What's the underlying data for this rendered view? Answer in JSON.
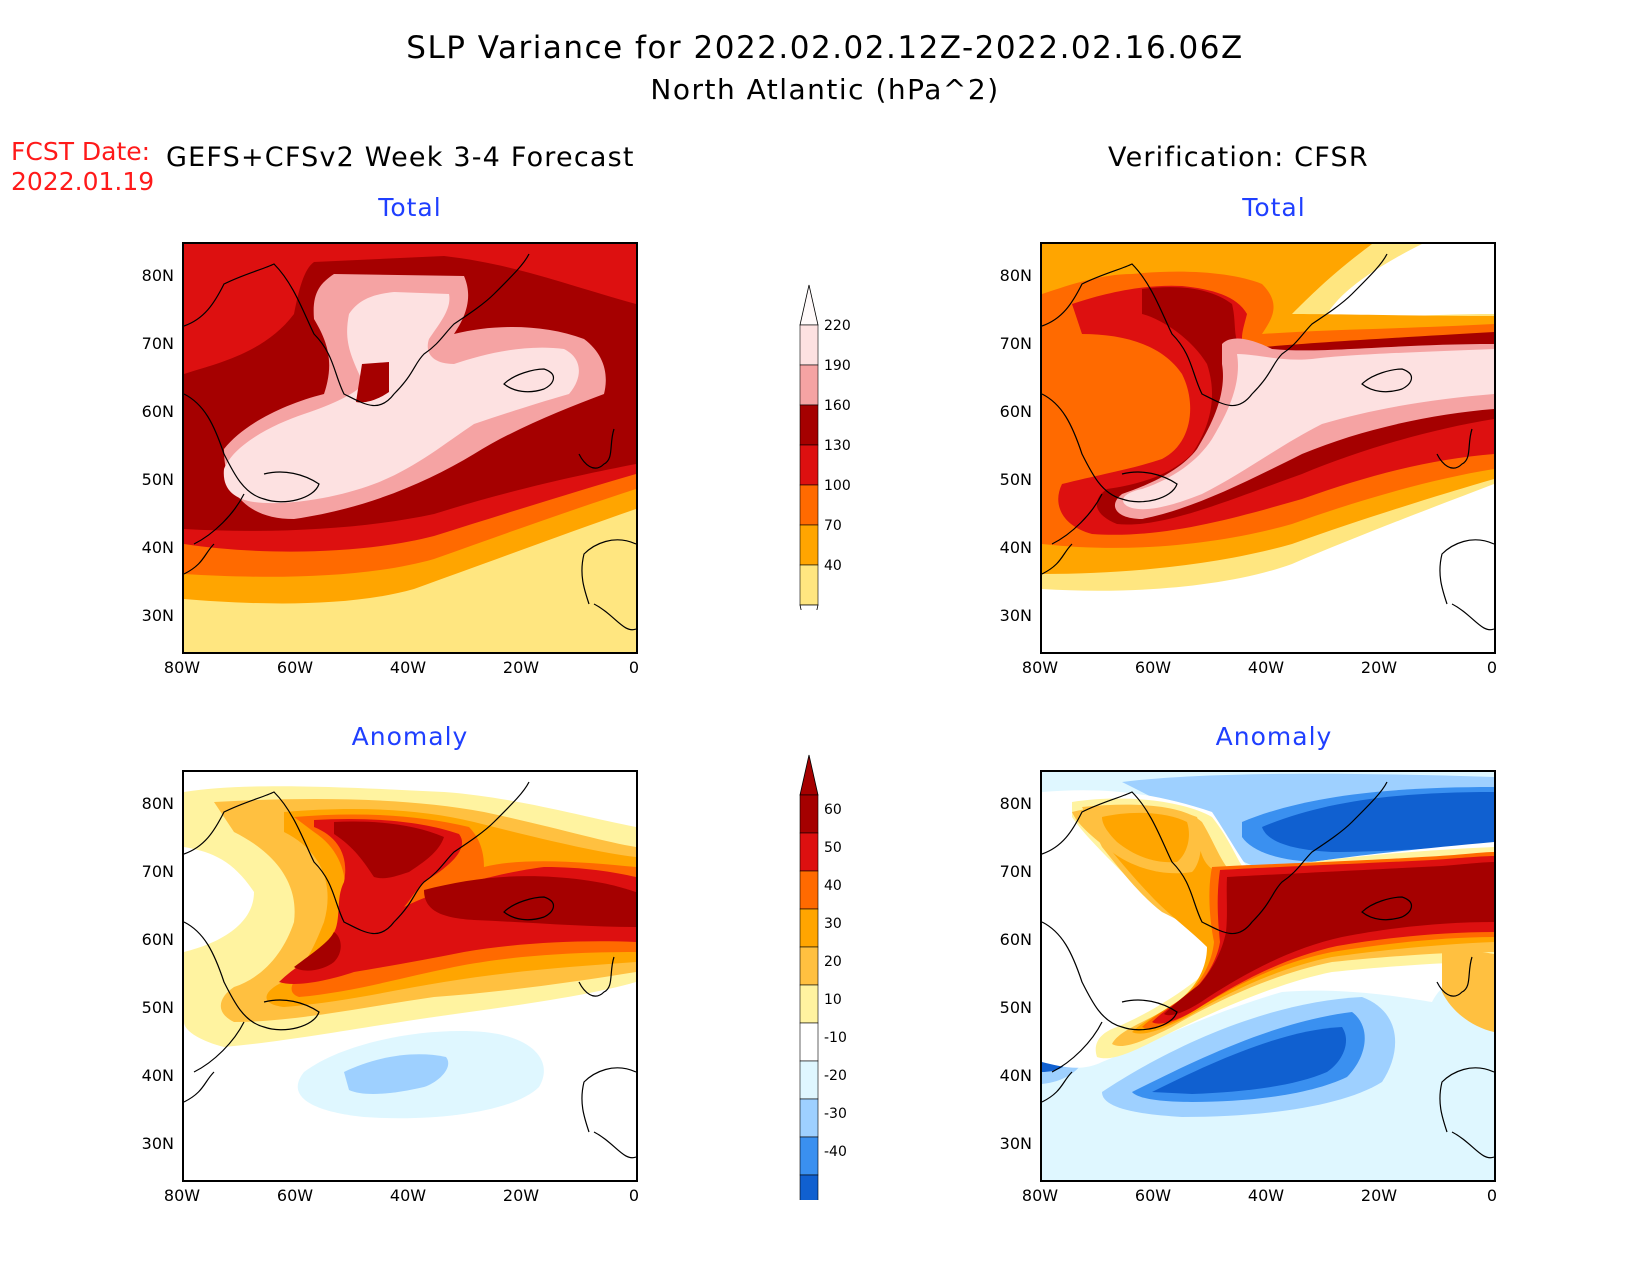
{
  "header": {
    "title_line1": "SLP Variance for 2022.02.02.12Z-2022.02.16.06Z",
    "title_line2": "North Atlantic (hPa^2)",
    "fcst_label": "FCST Date:",
    "fcst_date": "2022.01.19",
    "left_heading": "GEFS+CFSv2 Week 3-4 Forecast",
    "right_heading": "Verification: CFSR"
  },
  "panels": {
    "top_left_title": "Total",
    "top_right_title": "Total",
    "bottom_left_title": "Anomaly",
    "bottom_right_title": "Anomaly"
  },
  "axes": {
    "lat_labels": [
      "80N",
      "70N",
      "60N",
      "50N",
      "40N",
      "30N"
    ],
    "lon_labels": [
      "80W",
      "60W",
      "40W",
      "20W",
      "0"
    ]
  },
  "colorbar_total": {
    "levels": [
      "220",
      "190",
      "160",
      "130",
      "100",
      "70",
      "40"
    ],
    "colors": [
      "#fde1e1",
      "#f5a3a3",
      "#a50000",
      "#dd1010",
      "#ff6a00",
      "#ffa500",
      "#ffe680"
    ]
  },
  "colorbar_anom": {
    "levels": [
      "60",
      "50",
      "40",
      "30",
      "20",
      "10",
      "-10",
      "-20",
      "-30",
      "-40"
    ],
    "colors": [
      "#a50000",
      "#dd1010",
      "#ff6a00",
      "#ffa500",
      "#ffc040",
      "#fff3a0",
      "#ffffff",
      "#dff7ff",
      "#9ed0ff",
      "#3a90f0",
      "#1060d0"
    ]
  },
  "palette": {
    "total": [
      "#ffe680",
      "#ffa500",
      "#ff6a00",
      "#dd1010",
      "#a50000",
      "#f5a3a3",
      "#fde1e1"
    ],
    "anom_pos": [
      "#fff3a0",
      "#ffc040",
      "#ffa500",
      "#ff6a00",
      "#dd1010",
      "#a50000"
    ],
    "anom_neg": [
      "#dff7ff",
      "#9ed0ff",
      "#3a90f0",
      "#1060d0"
    ],
    "title_blue": "#1f3fff",
    "fcst_red": "#ff1a1a"
  }
}
